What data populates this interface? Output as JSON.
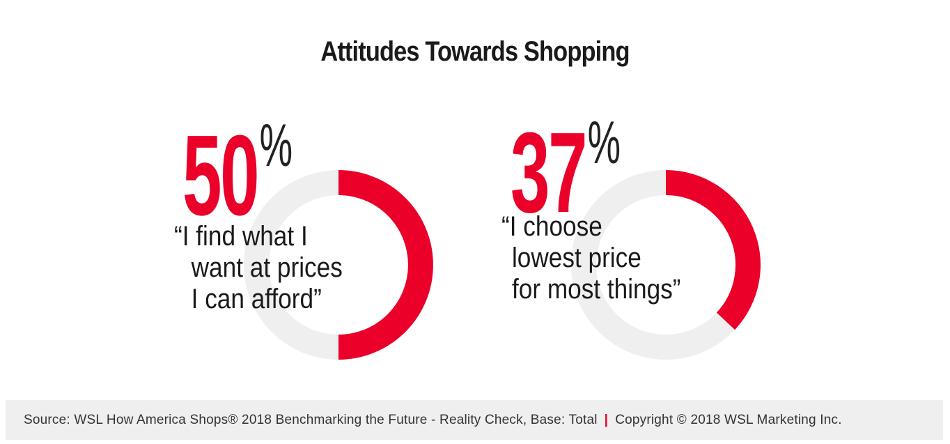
{
  "title": "Attitudes Towards Shopping",
  "colors": {
    "accent": "#ea0029",
    "track": "#efefef",
    "text": "#1a1a1a"
  },
  "chart_data": [
    {
      "type": "pie",
      "value": 50,
      "unit": "%",
      "label_lines": [
        "“I find what I",
        "want at prices",
        "I can afford”"
      ]
    },
    {
      "type": "pie",
      "value": 37,
      "unit": "%",
      "label_lines": [
        "“I choose",
        "lowest price",
        "for most things”"
      ]
    }
  ],
  "footer": {
    "source": "Source: WSL How America Shops® 2018 Benchmarking the Future - Reality Check, Base: Total",
    "separator": "|",
    "copyright": "Copyright © 2018 WSL Marketing Inc."
  }
}
